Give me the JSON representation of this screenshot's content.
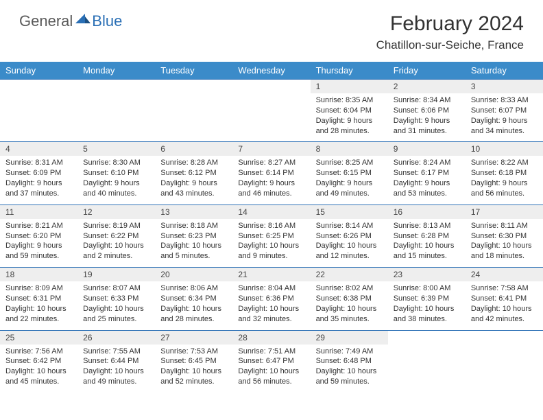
{
  "logo": {
    "general": "General",
    "blue": "Blue"
  },
  "title": "February 2024",
  "location": "Chatillon-sur-Seiche, France",
  "colors": {
    "header_bg": "#3b8bc9",
    "header_text": "#ffffff",
    "daynum_bg": "#eeeeee",
    "border": "#2a6fb5",
    "logo_gray": "#5a5a5a",
    "logo_blue": "#2a6fb5",
    "body_text": "#333333",
    "background": "#ffffff"
  },
  "fonts": {
    "month_title_size": 30,
    "location_size": 17,
    "weekday_size": 13,
    "daynum_size": 12,
    "cell_size": 11
  },
  "weekdays": [
    "Sunday",
    "Monday",
    "Tuesday",
    "Wednesday",
    "Thursday",
    "Friday",
    "Saturday"
  ],
  "weeks": [
    [
      null,
      null,
      null,
      null,
      {
        "n": "1",
        "sr": "Sunrise: 8:35 AM",
        "ss": "Sunset: 6:04 PM",
        "d1": "Daylight: 9 hours",
        "d2": "and 28 minutes."
      },
      {
        "n": "2",
        "sr": "Sunrise: 8:34 AM",
        "ss": "Sunset: 6:06 PM",
        "d1": "Daylight: 9 hours",
        "d2": "and 31 minutes."
      },
      {
        "n": "3",
        "sr": "Sunrise: 8:33 AM",
        "ss": "Sunset: 6:07 PM",
        "d1": "Daylight: 9 hours",
        "d2": "and 34 minutes."
      }
    ],
    [
      {
        "n": "4",
        "sr": "Sunrise: 8:31 AM",
        "ss": "Sunset: 6:09 PM",
        "d1": "Daylight: 9 hours",
        "d2": "and 37 minutes."
      },
      {
        "n": "5",
        "sr": "Sunrise: 8:30 AM",
        "ss": "Sunset: 6:10 PM",
        "d1": "Daylight: 9 hours",
        "d2": "and 40 minutes."
      },
      {
        "n": "6",
        "sr": "Sunrise: 8:28 AM",
        "ss": "Sunset: 6:12 PM",
        "d1": "Daylight: 9 hours",
        "d2": "and 43 minutes."
      },
      {
        "n": "7",
        "sr": "Sunrise: 8:27 AM",
        "ss": "Sunset: 6:14 PM",
        "d1": "Daylight: 9 hours",
        "d2": "and 46 minutes."
      },
      {
        "n": "8",
        "sr": "Sunrise: 8:25 AM",
        "ss": "Sunset: 6:15 PM",
        "d1": "Daylight: 9 hours",
        "d2": "and 49 minutes."
      },
      {
        "n": "9",
        "sr": "Sunrise: 8:24 AM",
        "ss": "Sunset: 6:17 PM",
        "d1": "Daylight: 9 hours",
        "d2": "and 53 minutes."
      },
      {
        "n": "10",
        "sr": "Sunrise: 8:22 AM",
        "ss": "Sunset: 6:18 PM",
        "d1": "Daylight: 9 hours",
        "d2": "and 56 minutes."
      }
    ],
    [
      {
        "n": "11",
        "sr": "Sunrise: 8:21 AM",
        "ss": "Sunset: 6:20 PM",
        "d1": "Daylight: 9 hours",
        "d2": "and 59 minutes."
      },
      {
        "n": "12",
        "sr": "Sunrise: 8:19 AM",
        "ss": "Sunset: 6:22 PM",
        "d1": "Daylight: 10 hours",
        "d2": "and 2 minutes."
      },
      {
        "n": "13",
        "sr": "Sunrise: 8:18 AM",
        "ss": "Sunset: 6:23 PM",
        "d1": "Daylight: 10 hours",
        "d2": "and 5 minutes."
      },
      {
        "n": "14",
        "sr": "Sunrise: 8:16 AM",
        "ss": "Sunset: 6:25 PM",
        "d1": "Daylight: 10 hours",
        "d2": "and 9 minutes."
      },
      {
        "n": "15",
        "sr": "Sunrise: 8:14 AM",
        "ss": "Sunset: 6:26 PM",
        "d1": "Daylight: 10 hours",
        "d2": "and 12 minutes."
      },
      {
        "n": "16",
        "sr": "Sunrise: 8:13 AM",
        "ss": "Sunset: 6:28 PM",
        "d1": "Daylight: 10 hours",
        "d2": "and 15 minutes."
      },
      {
        "n": "17",
        "sr": "Sunrise: 8:11 AM",
        "ss": "Sunset: 6:30 PM",
        "d1": "Daylight: 10 hours",
        "d2": "and 18 minutes."
      }
    ],
    [
      {
        "n": "18",
        "sr": "Sunrise: 8:09 AM",
        "ss": "Sunset: 6:31 PM",
        "d1": "Daylight: 10 hours",
        "d2": "and 22 minutes."
      },
      {
        "n": "19",
        "sr": "Sunrise: 8:07 AM",
        "ss": "Sunset: 6:33 PM",
        "d1": "Daylight: 10 hours",
        "d2": "and 25 minutes."
      },
      {
        "n": "20",
        "sr": "Sunrise: 8:06 AM",
        "ss": "Sunset: 6:34 PM",
        "d1": "Daylight: 10 hours",
        "d2": "and 28 minutes."
      },
      {
        "n": "21",
        "sr": "Sunrise: 8:04 AM",
        "ss": "Sunset: 6:36 PM",
        "d1": "Daylight: 10 hours",
        "d2": "and 32 minutes."
      },
      {
        "n": "22",
        "sr": "Sunrise: 8:02 AM",
        "ss": "Sunset: 6:38 PM",
        "d1": "Daylight: 10 hours",
        "d2": "and 35 minutes."
      },
      {
        "n": "23",
        "sr": "Sunrise: 8:00 AM",
        "ss": "Sunset: 6:39 PM",
        "d1": "Daylight: 10 hours",
        "d2": "and 38 minutes."
      },
      {
        "n": "24",
        "sr": "Sunrise: 7:58 AM",
        "ss": "Sunset: 6:41 PM",
        "d1": "Daylight: 10 hours",
        "d2": "and 42 minutes."
      }
    ],
    [
      {
        "n": "25",
        "sr": "Sunrise: 7:56 AM",
        "ss": "Sunset: 6:42 PM",
        "d1": "Daylight: 10 hours",
        "d2": "and 45 minutes."
      },
      {
        "n": "26",
        "sr": "Sunrise: 7:55 AM",
        "ss": "Sunset: 6:44 PM",
        "d1": "Daylight: 10 hours",
        "d2": "and 49 minutes."
      },
      {
        "n": "27",
        "sr": "Sunrise: 7:53 AM",
        "ss": "Sunset: 6:45 PM",
        "d1": "Daylight: 10 hours",
        "d2": "and 52 minutes."
      },
      {
        "n": "28",
        "sr": "Sunrise: 7:51 AM",
        "ss": "Sunset: 6:47 PM",
        "d1": "Daylight: 10 hours",
        "d2": "and 56 minutes."
      },
      {
        "n": "29",
        "sr": "Sunrise: 7:49 AM",
        "ss": "Sunset: 6:48 PM",
        "d1": "Daylight: 10 hours",
        "d2": "and 59 minutes."
      },
      null,
      null
    ]
  ]
}
